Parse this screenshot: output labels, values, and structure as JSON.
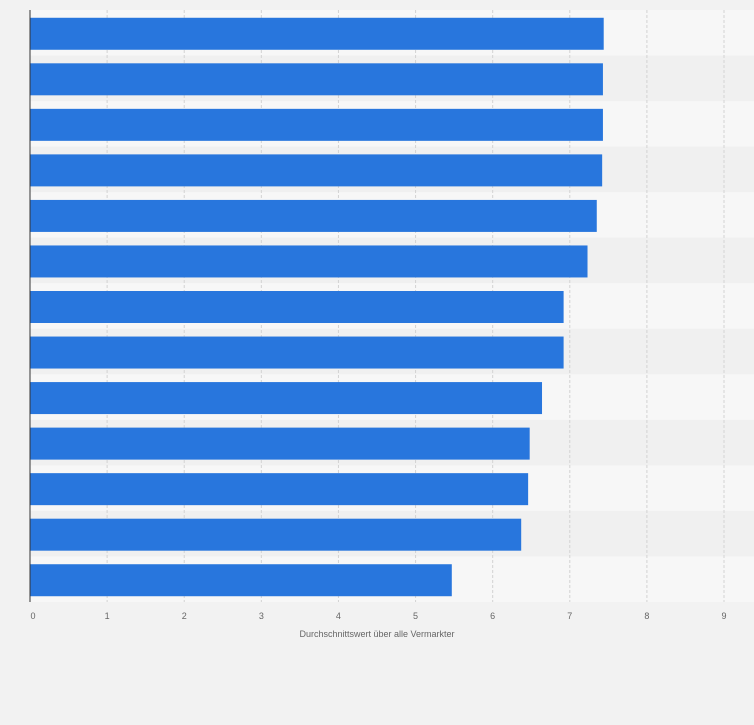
{
  "chart_data": {
    "type": "bar",
    "orientation": "horizontal",
    "title": "",
    "categories": [
      "",
      "",
      "",
      "",
      "",
      "",
      "",
      "",
      "",
      "",
      "",
      "",
      ""
    ],
    "values": [
      7.44,
      7.43,
      7.43,
      7.42,
      7.35,
      7.23,
      6.92,
      6.92,
      6.64,
      6.48,
      6.46,
      6.37,
      5.47
    ],
    "xlabel": "Durchschnittswert über alle Vermarkter",
    "ylabel": "",
    "xlim": [
      0,
      9
    ],
    "xticks": [
      "0",
      "1",
      "2",
      "3",
      "4",
      "5",
      "6",
      "7",
      "8",
      "9"
    ],
    "grid": true,
    "legend": "none"
  },
  "colors": {
    "bar": "#2876dd",
    "band_light": "#f7f7f7",
    "band_dark": "#f0f0f0",
    "background": "#f2f2f2",
    "grid": "#d3d3d3",
    "axis": "#333333",
    "tick_text": "#666666"
  }
}
